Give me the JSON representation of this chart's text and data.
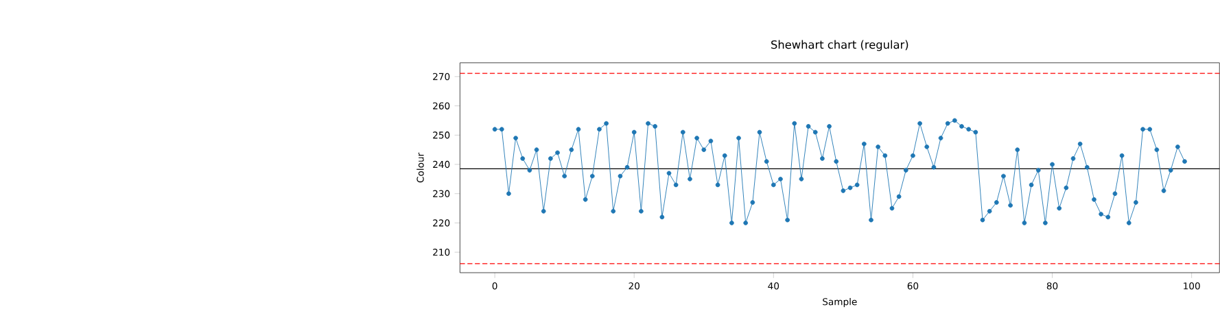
{
  "chart_data": {
    "type": "line",
    "title": "Shewhart chart (regular)",
    "xlabel": "Sample",
    "ylabel": "Colour",
    "x": [
      0,
      1,
      2,
      3,
      4,
      5,
      6,
      7,
      8,
      9,
      10,
      11,
      12,
      13,
      14,
      15,
      16,
      17,
      18,
      19,
      20,
      21,
      22,
      23,
      24,
      25,
      26,
      27,
      28,
      29,
      30,
      31,
      32,
      33,
      34,
      35,
      36,
      37,
      38,
      39,
      40,
      41,
      42,
      43,
      44,
      45,
      46,
      47,
      48,
      49,
      50,
      51,
      52,
      53,
      54,
      55,
      56,
      57,
      58,
      59,
      60,
      61,
      62,
      63,
      64,
      65,
      66,
      67,
      68,
      69,
      70,
      71,
      72,
      73,
      74,
      75,
      76,
      77,
      78,
      79,
      80,
      81,
      82,
      83,
      84,
      85,
      86,
      87,
      88,
      89,
      90,
      91,
      92,
      93,
      94,
      95,
      96,
      97,
      98,
      99
    ],
    "series": [
      {
        "color": "#1f77b4",
        "values": [
          252,
          252,
          230,
          249,
          242,
          238,
          245,
          224,
          242,
          244,
          236,
          245,
          252,
          228,
          236,
          252,
          254,
          224,
          236,
          239,
          251,
          224,
          254,
          253,
          222,
          237,
          233,
          251,
          235,
          249,
          245,
          248,
          233,
          243,
          220,
          249,
          220,
          227,
          251,
          241,
          233,
          235,
          221,
          254,
          235,
          253,
          251,
          242,
          253,
          241,
          231,
          232,
          233,
          247,
          221,
          246,
          243,
          225,
          229,
          238,
          243,
          254,
          246,
          239,
          249,
          254,
          255,
          253,
          252,
          251,
          221,
          224,
          227,
          236,
          226,
          245,
          220,
          233,
          238,
          220,
          240,
          225,
          232,
          242,
          247,
          239,
          228,
          223,
          222,
          230,
          243,
          220,
          227,
          252,
          252,
          245,
          231,
          238,
          246,
          241
        ]
      }
    ],
    "marker": "circle",
    "line_style": "solid",
    "xlim": [
      -5,
      104
    ],
    "ylim": [
      203,
      274.7
    ],
    "xticks": [
      0,
      20,
      40,
      60,
      80,
      100
    ],
    "yticks": [
      210,
      220,
      230,
      240,
      250,
      260,
      270
    ],
    "ref_lines": [
      {
        "axis": "y",
        "value": 238.5,
        "color": "#000000",
        "line_style": "solid"
      },
      {
        "axis": "y",
        "value": 271.1,
        "color": "#ff0000",
        "line_style": "dashed"
      },
      {
        "axis": "y",
        "value": 206.1,
        "color": "#ff0000",
        "line_style": "dashed"
      }
    ]
  }
}
